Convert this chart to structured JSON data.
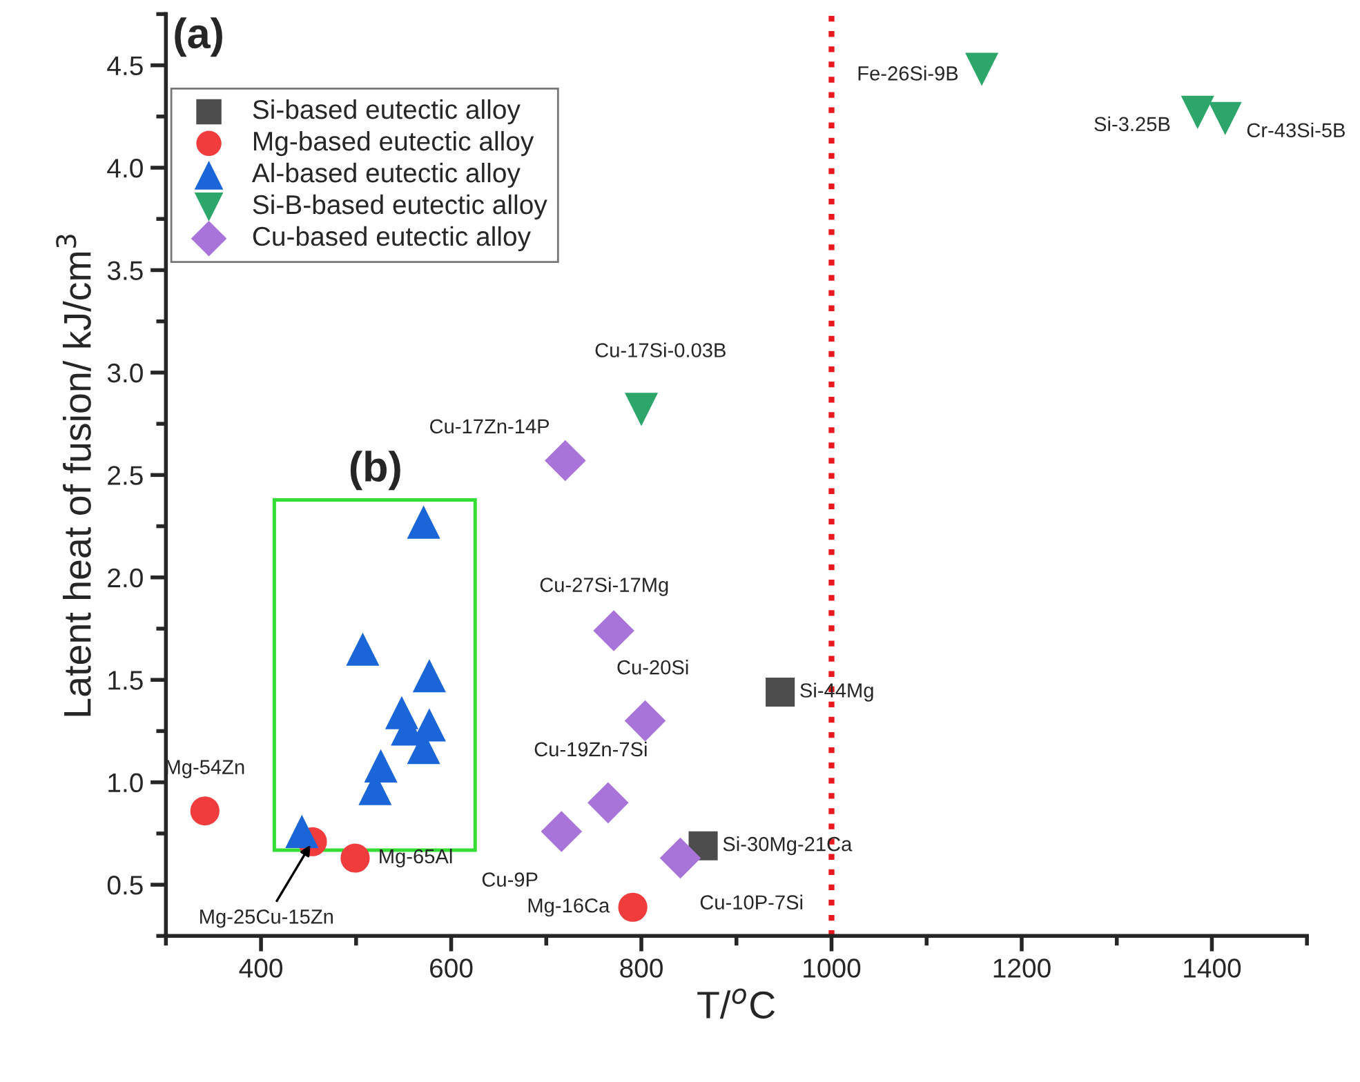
{
  "chart_data": {
    "type": "scatter",
    "xlabel": "T/$^{o}$C",
    "ylabel": "Latent heat of fusion/ kJ/cm$^{3}$",
    "xlim": [
      300,
      1500
    ],
    "ylim": [
      0.25,
      4.75
    ],
    "xticks": [
      {
        "value": 300,
        "label": null
      },
      400,
      {
        "value": 500,
        "label": null
      },
      600,
      {
        "value": 700,
        "label": null
      },
      800,
      {
        "value": 900,
        "label": null
      },
      1000,
      {
        "value": 1100,
        "label": null
      },
      1200,
      {
        "value": 1300,
        "label": null
      },
      1400,
      {
        "value": 1500,
        "label": null
      }
    ],
    "yticks": [
      {
        "value": 0.25,
        "label": null
      },
      0.5,
      {
        "value": 0.75,
        "label": null
      },
      {
        "value": 1,
        "label": "1.0"
      },
      {
        "value": 1.25,
        "label": null
      },
      1.5,
      {
        "value": 1.75,
        "label": null
      },
      {
        "value": 2,
        "label": "2.0"
      },
      {
        "value": 2.25,
        "label": null
      },
      2.5,
      {
        "value": 2.75,
        "label": null
      },
      {
        "value": 3,
        "label": "3.0"
      },
      {
        "value": 3.25,
        "label": null
      },
      3.5,
      {
        "value": 3.75,
        "label": null
      },
      {
        "value": 4,
        "label": "4.0"
      },
      {
        "value": 4.25,
        "label": null
      },
      4.5,
      {
        "value": 4.75,
        "label": null
      }
    ],
    "grid": false,
    "legend": "top left",
    "ref_lines": [
      {
        "axis": "x",
        "value": 1000,
        "color": "#e8191e",
        "line_style": "dotted"
      }
    ],
    "series": [
      {
        "name": "Si-based eutectic alloy",
        "color": "#4d4d4d",
        "marker": "square",
        "x": [
          946,
          865
        ],
        "values": [
          1.44,
          0.69
        ]
      },
      {
        "name": "Mg-based eutectic alloy",
        "color": "#f03c3c",
        "marker": "circle",
        "x": [
          341,
          454,
          499,
          791
        ],
        "values": [
          0.86,
          0.71,
          0.63,
          0.39
        ]
      },
      {
        "name": "Al-based eutectic alloy",
        "color": "#1a66d9",
        "marker": "triangle",
        "x": [
          571,
          507,
          577,
          548,
          554,
          577,
          571,
          526,
          520,
          443
        ],
        "values": [
          2.27,
          1.65,
          1.52,
          1.34,
          1.26,
          1.28,
          1.17,
          1.08,
          0.97,
          0.76
        ]
      },
      {
        "name": "Si-B-based eutectic alloy",
        "color": "#2ca66a",
        "marker": "triangle_down",
        "x": [
          800,
          1158,
          1385,
          1414
        ],
        "values": [
          2.82,
          4.48,
          4.27,
          4.24
        ]
      },
      {
        "name": "Cu-based eutectic alloy",
        "color": "#a874d9",
        "marker": "diamond",
        "x": [
          720,
          771,
          804,
          765,
          716,
          841
        ],
        "values": [
          2.57,
          1.74,
          1.3,
          0.9,
          0.76,
          0.63
        ]
      }
    ],
    "annotations": [
      "(a)",
      "(b)",
      {
        "text": "Si-44Mg",
        "x": 946,
        "y": 1.44
      },
      {
        "text": "Si-30Mg-21Ca",
        "x": 865,
        "y": 0.69
      },
      {
        "text": "Mg-54Zn",
        "x": 341,
        "y": 0.86
      },
      {
        "text": "Mg-25Cu-15Zn",
        "x": 454,
        "y": 0.71
      },
      {
        "text": "Mg-65Al",
        "x": 499,
        "y": 0.63
      },
      {
        "text": "Mg-16Ca",
        "x": 791,
        "y": 0.39
      },
      {
        "text": "Cu-17Si-0.03B",
        "x": 800,
        "y": 2.82
      },
      {
        "text": "Fe-26Si-9B",
        "x": 1158,
        "y": 4.48
      },
      {
        "text": "Si-3.25B",
        "x": 1385,
        "y": 4.27
      },
      {
        "text": "Cr-43Si-5B",
        "x": 1414,
        "y": 4.24
      },
      {
        "text": "Cu-17Zn-14P",
        "x": 720,
        "y": 2.57
      },
      {
        "text": "Cu-27Si-17Mg",
        "x": 771,
        "y": 1.74
      },
      {
        "text": "Cu-20Si",
        "x": 804,
        "y": 1.3
      },
      {
        "text": "Cu-19Zn-7Si",
        "x": 765,
        "y": 0.9
      },
      {
        "text": "Cu-9P",
        "x": 716,
        "y": 0.76
      },
      {
        "text": "Cu-10P-7Si",
        "x": 841,
        "y": 0.63
      }
    ]
  }
}
